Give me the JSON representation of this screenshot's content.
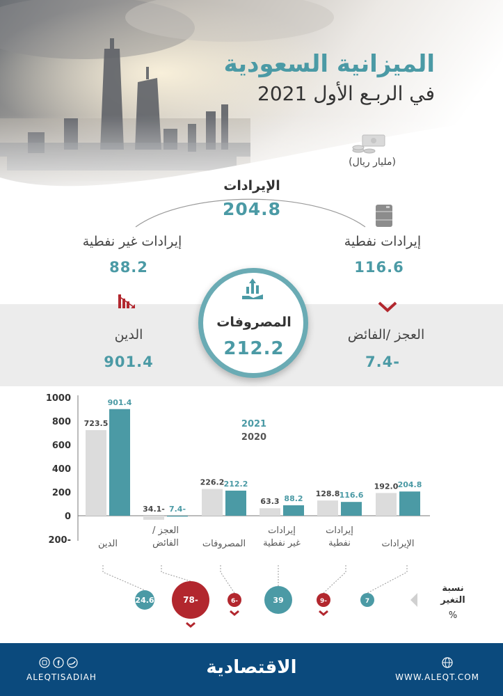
{
  "header": {
    "title_line1": "الميزانية السعودية",
    "title_line2": "في الربـع الأول 2021",
    "unit": "(مليار ريال)"
  },
  "summary": {
    "revenues": {
      "label": "الإيرادات",
      "value": "204.8"
    },
    "oil_revenues": {
      "label": "إيرادات نفطية",
      "value": "116.6"
    },
    "non_oil_revenues": {
      "label": "إيرادات غير نفطية",
      "value": "88.2"
    },
    "expenditures": {
      "label": "المصروفات",
      "value": "212.2"
    },
    "deficit": {
      "label": "العجز /الفائض",
      "value": "-7.4"
    },
    "debt": {
      "label": "الدين",
      "value": "901.4"
    }
  },
  "chart_data": {
    "type": "bar",
    "categories": [
      "الإيرادات",
      "إيرادات نفطية",
      "إيرادات غير نفطية",
      "المصروفات",
      "العجز / الفائض",
      "الدين"
    ],
    "series": [
      {
        "name": "2021",
        "values": [
          204.8,
          116.6,
          88.2,
          212.2,
          -7.4,
          901.4
        ],
        "labels": [
          "204.8",
          "116.6",
          "88.2",
          "212.2",
          "7.4-",
          "901.4"
        ],
        "color": "#4b9aa5"
      },
      {
        "name": "2020",
        "values": [
          192.0,
          128.8,
          63.3,
          226.2,
          -34.1,
          723.5
        ],
        "labels": [
          "192.0",
          "128.8",
          "63.3",
          "226.2",
          "34.1-",
          "723.5"
        ],
        "color": "#dcdcdc"
      }
    ],
    "yticks": [
      "1000",
      "800",
      "600",
      "400",
      "200",
      "0",
      "-200"
    ],
    "ylim": [
      -200,
      1000
    ]
  },
  "change": {
    "title_line1": "نسبة",
    "title_line2": "التغير",
    "percent": "%",
    "items": [
      {
        "category": "الإيرادات",
        "value": "7",
        "direction": "up"
      },
      {
        "category": "إيرادات نفطية",
        "value": "-9",
        "direction": "down"
      },
      {
        "category": "إيرادات غير نفطية",
        "value": "39",
        "direction": "up"
      },
      {
        "category": "المصروفات",
        "value": "-6",
        "direction": "down"
      },
      {
        "category": "العجز / الفائض",
        "value": "-78",
        "direction": "down"
      },
      {
        "category": "الدين",
        "value": "24.6",
        "direction": "up"
      }
    ]
  },
  "footer": {
    "brand": "الاقتصادية",
    "website": "WWW.ALEQT.COM",
    "handle": "ALEQTISADIAH"
  },
  "colors": {
    "teal": "#4b9aa5",
    "grey_bar": "#dcdcdc",
    "red": "#b2272e",
    "navy": "#0b4a7d"
  }
}
